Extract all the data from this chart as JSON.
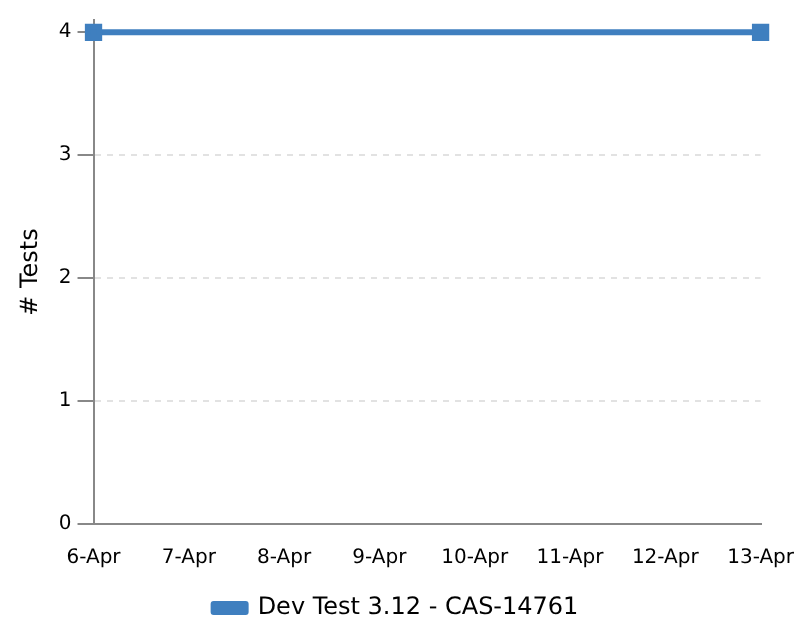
{
  "chart_data": {
    "type": "line",
    "ylabel": "# Tests",
    "categories": [
      "6-Apr",
      "7-Apr",
      "8-Apr",
      "9-Apr",
      "10-Apr",
      "11-Apr",
      "12-Apr",
      "13-Apr"
    ],
    "series": [
      {
        "name": "Dev Test 3.12 - CAS-14761",
        "color": "#3f7fbf",
        "values": [
          4,
          null,
          null,
          null,
          null,
          null,
          null,
          4
        ]
      }
    ],
    "ylim": [
      0,
      4.1
    ],
    "yticks": [
      0,
      1,
      2,
      3,
      4
    ],
    "grid": "y",
    "legend": "bottom",
    "marker": "square",
    "line_style": "solid"
  }
}
